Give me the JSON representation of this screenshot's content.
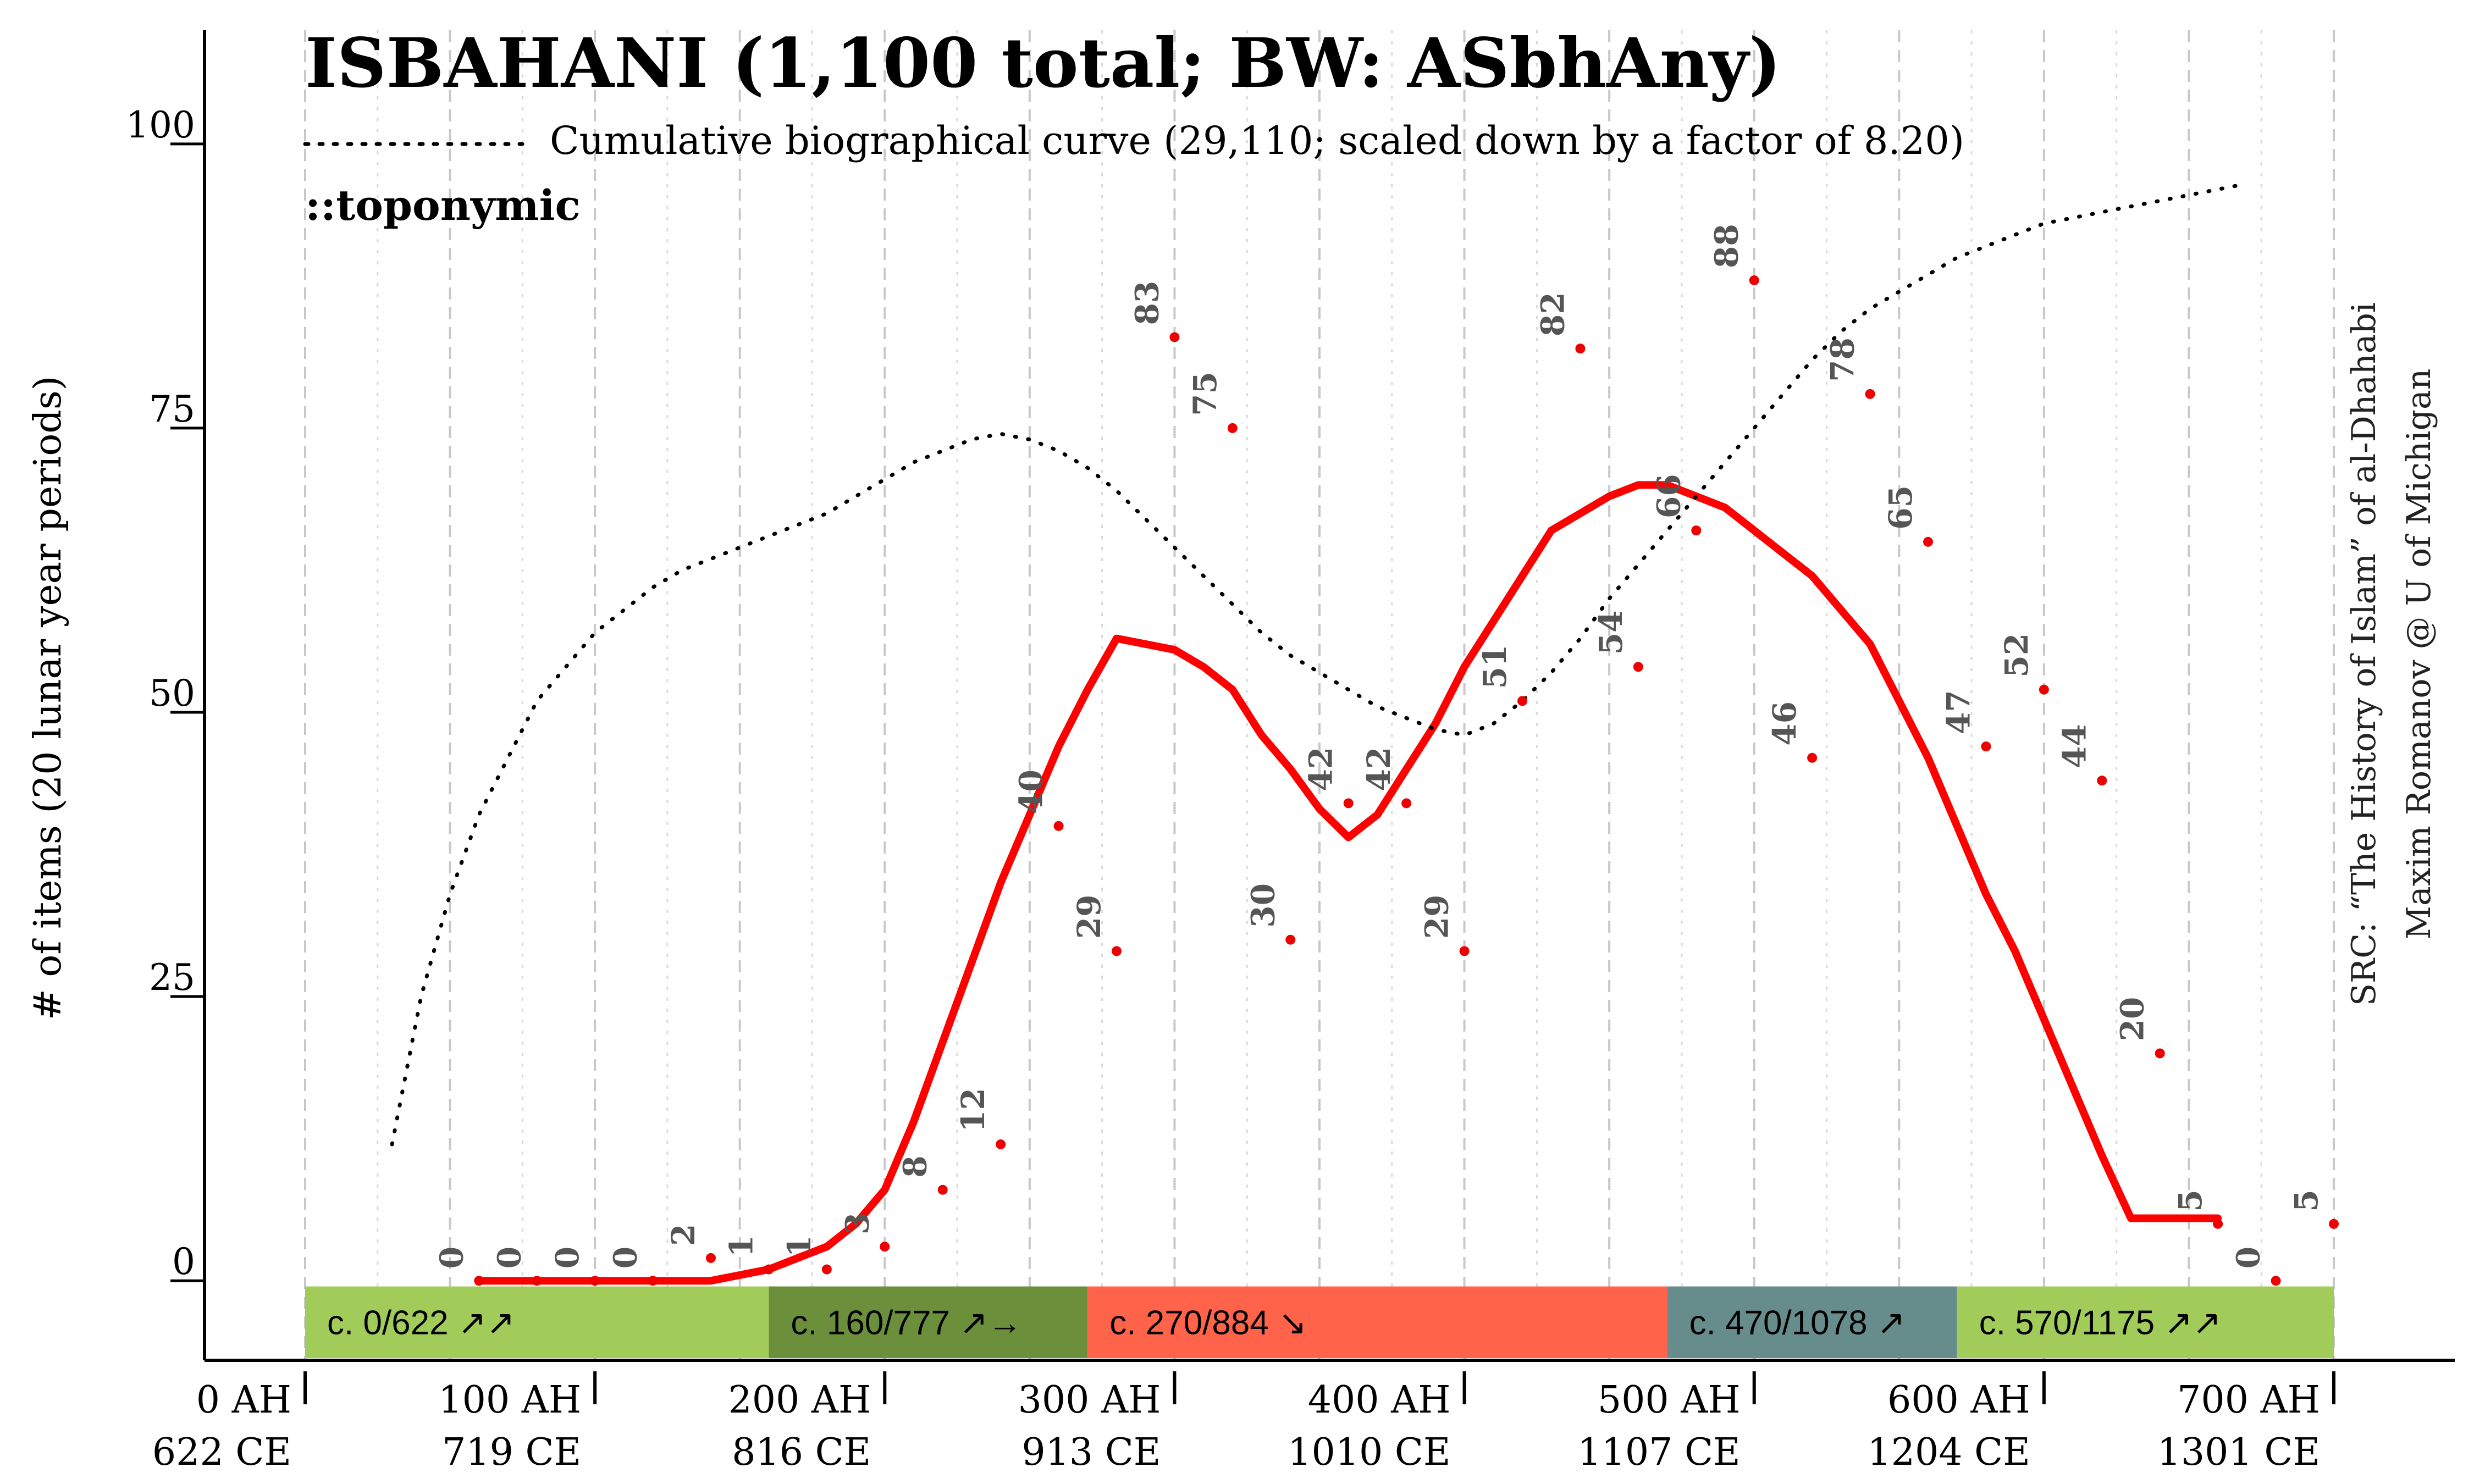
{
  "chart_data": {
    "type": "line",
    "title": "ISBAHANI (1,100 total; BW: ASbhAny)",
    "legend_cumulative": "Cumulative biographical curve (29,110; scaled down by a factor of 8.20)",
    "tag": "::toponymic",
    "ylabel": "# of items (20 lunar year periods)",
    "source_line1": "SRC: “The History of Islam” of al-Dhahabi",
    "source_line2": "Maxim Romanov @ U of Michigan",
    "xlim": [
      0,
      700
    ],
    "ylim": [
      -7,
      110
    ],
    "yticks": [
      {
        "value": 0,
        "label": "0"
      },
      {
        "value": 25,
        "label": "25"
      },
      {
        "value": 50,
        "label": "50"
      },
      {
        "value": 75,
        "label": "75"
      },
      {
        "value": 100,
        "label": "100"
      }
    ],
    "xticks": [
      {
        "value": 0,
        "line1": "0 AH",
        "line2": "622 CE"
      },
      {
        "value": 100,
        "line1": "100 AH",
        "line2": "719 CE"
      },
      {
        "value": 200,
        "line1": "200 AH",
        "line2": "816 CE"
      },
      {
        "value": 300,
        "line1": "300 AH",
        "line2": "913 CE"
      },
      {
        "value": 400,
        "line1": "400 AH",
        "line2": "1010 CE"
      },
      {
        "value": 500,
        "line1": "500 AH",
        "line2": "1107 CE"
      },
      {
        "value": 600,
        "line1": "600 AH",
        "line2": "1204 CE"
      },
      {
        "value": 700,
        "line1": "700 AH",
        "line2": "1301 CE"
      }
    ],
    "points": [
      {
        "x": 60,
        "y": 0,
        "label": "0"
      },
      {
        "x": 80,
        "y": 0,
        "label": "0"
      },
      {
        "x": 100,
        "y": 0,
        "label": "0"
      },
      {
        "x": 120,
        "y": 0,
        "label": "0"
      },
      {
        "x": 140,
        "y": 2,
        "label": "2"
      },
      {
        "x": 160,
        "y": 1,
        "label": "1"
      },
      {
        "x": 180,
        "y": 1,
        "label": "1"
      },
      {
        "x": 200,
        "y": 3,
        "label": "3"
      },
      {
        "x": 220,
        "y": 8,
        "label": "8"
      },
      {
        "x": 240,
        "y": 12,
        "label": "12"
      },
      {
        "x": 260,
        "y": 40,
        "label": "40"
      },
      {
        "x": 280,
        "y": 29,
        "label": "29"
      },
      {
        "x": 300,
        "y": 83,
        "label": "83"
      },
      {
        "x": 320,
        "y": 75,
        "label": "75"
      },
      {
        "x": 340,
        "y": 30,
        "label": "30"
      },
      {
        "x": 360,
        "y": 42,
        "label": "42"
      },
      {
        "x": 380,
        "y": 42,
        "label": "42"
      },
      {
        "x": 400,
        "y": 29,
        "label": "29"
      },
      {
        "x": 420,
        "y": 51,
        "label": "51"
      },
      {
        "x": 440,
        "y": 82,
        "label": "82"
      },
      {
        "x": 460,
        "y": 54,
        "label": "54"
      },
      {
        "x": 480,
        "y": 66,
        "label": "66"
      },
      {
        "x": 500,
        "y": 88,
        "label": "88"
      },
      {
        "x": 520,
        "y": 46,
        "label": "46"
      },
      {
        "x": 540,
        "y": 78,
        "label": "78"
      },
      {
        "x": 560,
        "y": 65,
        "label": "65"
      },
      {
        "x": 580,
        "y": 47,
        "label": "47"
      },
      {
        "x": 600,
        "y": 52,
        "label": "52"
      },
      {
        "x": 620,
        "y": 44,
        "label": "44"
      },
      {
        "x": 640,
        "y": 20,
        "label": "20"
      },
      {
        "x": 660,
        "y": 5,
        "label": "5"
      },
      {
        "x": 680,
        "y": 0,
        "label": "0"
      },
      {
        "x": 700,
        "y": 5,
        "label": "5"
      }
    ],
    "series": [
      {
        "style": "smoothed-solid",
        "color": "#ff0000",
        "x": [
          60,
          80,
          100,
          120,
          140,
          150,
          160,
          170,
          180,
          190,
          200,
          210,
          220,
          230,
          240,
          250,
          260,
          270,
          280,
          290,
          300,
          310,
          320,
          330,
          340,
          350,
          360,
          370,
          380,
          390,
          400,
          410,
          420,
          430,
          440,
          450,
          460,
          470,
          480,
          490,
          500,
          510,
          520,
          530,
          540,
          550,
          560,
          570,
          580,
          590,
          600,
          610,
          620,
          630,
          640,
          650,
          660
        ],
        "y": [
          0,
          0,
          0,
          0,
          0,
          0.5,
          1,
          2,
          3,
          5,
          8,
          14,
          21,
          28,
          35,
          41,
          47,
          52,
          56.5,
          56,
          55.5,
          54,
          52,
          48,
          45,
          41.5,
          39,
          41,
          45,
          49,
          54,
          58,
          62,
          66,
          67.5,
          69,
          70,
          70,
          69,
          68,
          66,
          64,
          62,
          59,
          56,
          51,
          46,
          40,
          34,
          29,
          23,
          17,
          11,
          5.5,
          5.5,
          5.5,
          5.5
        ]
      },
      {
        "style": "dotted",
        "color": "#000000",
        "x": [
          30,
          40,
          50,
          60,
          70,
          80,
          90,
          100,
          110,
          120,
          130,
          140,
          150,
          160,
          170,
          180,
          190,
          200,
          210,
          220,
          230,
          240,
          250,
          260,
          270,
          280,
          290,
          300,
          310,
          320,
          330,
          340,
          350,
          360,
          370,
          380,
          390,
          400,
          410,
          420,
          430,
          440,
          450,
          460,
          470,
          480,
          490,
          500,
          510,
          520,
          530,
          540,
          550,
          560,
          570,
          580,
          590,
          600,
          610,
          620,
          630,
          640,
          650,
          660,
          670
        ],
        "y": [
          12,
          25,
          34,
          41,
          46,
          51,
          54,
          57,
          59,
          61,
          62.5,
          63.5,
          64.5,
          65.5,
          66.5,
          67.5,
          69,
          70.5,
          72,
          73,
          74,
          74.5,
          74,
          73,
          71.5,
          69.5,
          67,
          64.5,
          62,
          59.5,
          57,
          55,
          53.5,
          52,
          50.5,
          49.5,
          48.5,
          48,
          49,
          51,
          53.5,
          56.5,
          60,
          63,
          66,
          69,
          72,
          75,
          78,
          81,
          83.5,
          85.5,
          87,
          88.5,
          90,
          91,
          92,
          93,
          93.5,
          94,
          94.5,
          95,
          95.5,
          96,
          96.5
        ]
      }
    ],
    "periods": [
      {
        "start": 0,
        "end": 160,
        "label": "c. 0/622 ↗↗",
        "color": "#a2cc5a"
      },
      {
        "start": 160,
        "end": 270,
        "label": "c. 160/777 ↗→",
        "color": "#6b8f3a"
      },
      {
        "start": 270,
        "end": 470,
        "label": "c. 270/884 ↘",
        "color": "#ff644a"
      },
      {
        "start": 470,
        "end": 570,
        "label": "c. 470/1078 ↗",
        "color": "#678c8c"
      },
      {
        "start": 570,
        "end": 700,
        "label": "c. 570/1175 ↗↗",
        "color": "#a2cc5a"
      }
    ],
    "grid": true
  }
}
